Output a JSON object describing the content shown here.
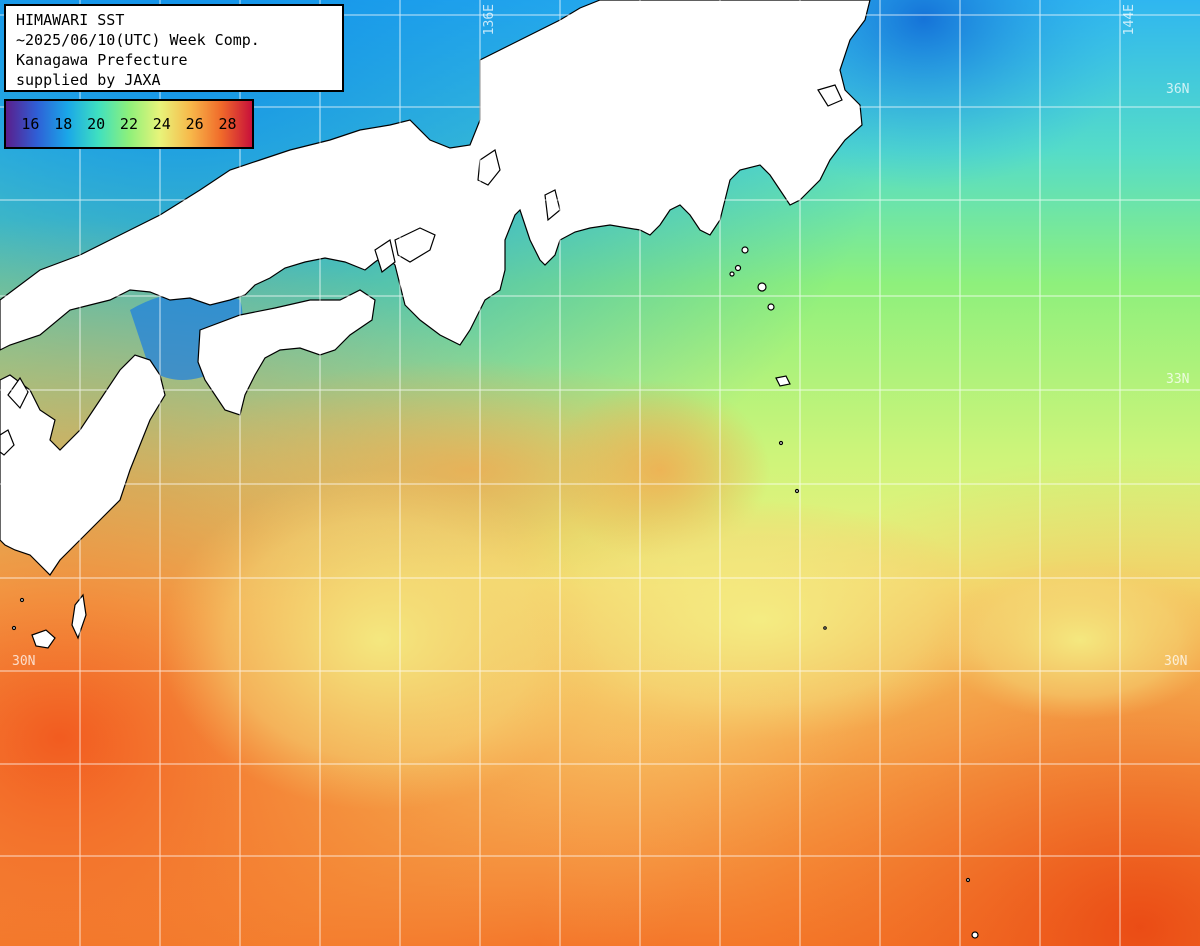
{
  "info": {
    "line1": "HIMAWARI SST",
    "line2": "~2025/06/10(UTC) Week Comp.",
    "line3": "Kanagawa Prefecture",
    "line4": "supplied by JAXA"
  },
  "legend": {
    "labels": [
      "16",
      "18",
      "20",
      "22",
      "24",
      "26",
      "28"
    ],
    "gradient": [
      "#5a1e8c",
      "#2f5fd6",
      "#1aa7e8",
      "#3fe0c0",
      "#8ef07a",
      "#e8f47a",
      "#f7b84a",
      "#f06a2a",
      "#c8103a"
    ]
  },
  "grid_labels": {
    "lon_136": "136E",
    "lon_144": "144E",
    "lat_36": "36N",
    "lat_33": "33N",
    "lat_30_left": "30N",
    "lat_30_right": "30N"
  },
  "colors": {
    "land": "#ffffff",
    "coast": "#000000",
    "grid": "#ffffff",
    "sst_cold": "#1ea0ee",
    "sst_cool": "#7ef07e",
    "sst_mild": "#eef47e",
    "sst_warm": "#f7b35a",
    "sst_hot": "#f25a1c"
  }
}
